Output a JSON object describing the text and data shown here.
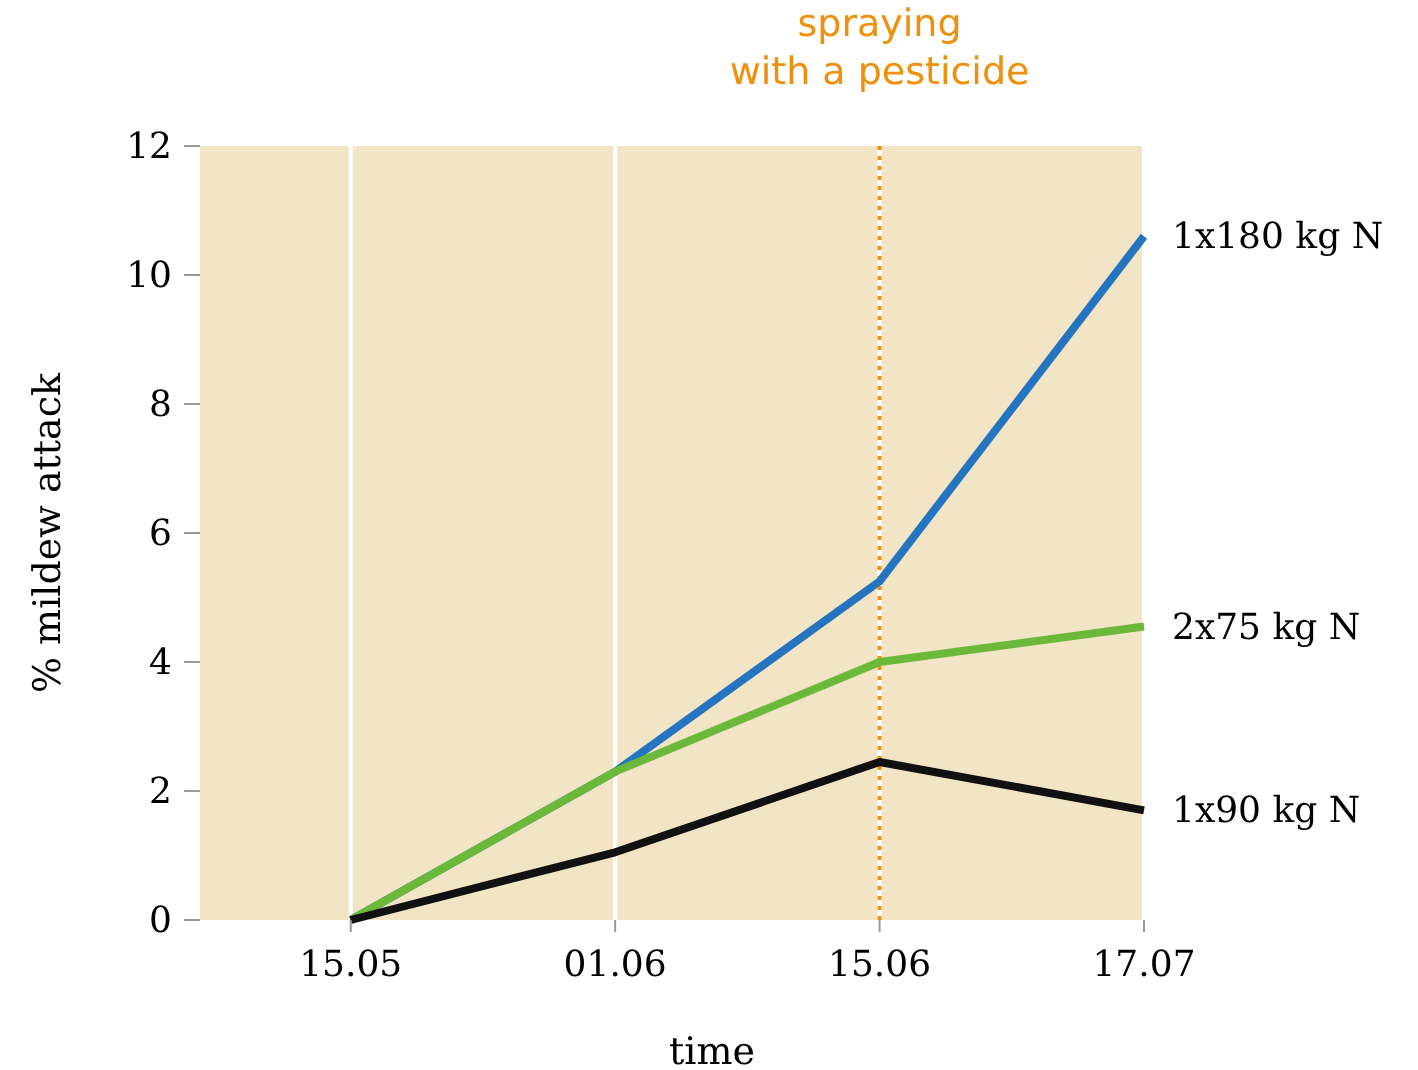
{
  "chart_data": {
    "type": "line",
    "xlabel": "time",
    "ylabel": "% mildew attack",
    "categories": [
      "15.05",
      "01.06",
      "15.06",
      "17.07"
    ],
    "series": [
      {
        "name": "1x180 kg N",
        "color": "#2474c0",
        "values": [
          0,
          2.3,
          5.25,
          10.6
        ]
      },
      {
        "name": "2x75 kg N",
        "color": "#6cb83a",
        "values": [
          0,
          2.3,
          4.0,
          4.55
        ]
      },
      {
        "name": "1x90 kg N",
        "color": "#111111",
        "values": [
          0,
          1.05,
          2.45,
          1.7
        ]
      }
    ],
    "ylim": [
      0,
      12
    ],
    "yticks": [
      0,
      2,
      4,
      6,
      8,
      10,
      12
    ],
    "grid": "x",
    "legend": "right",
    "marker": "none",
    "line_style": "solid",
    "ref_lines": [
      {
        "axis": "x",
        "value": "15.06",
        "label": "spraying\nwith a pesticide",
        "color": "#f0900a",
        "line_style": "dotted"
      }
    ]
  }
}
